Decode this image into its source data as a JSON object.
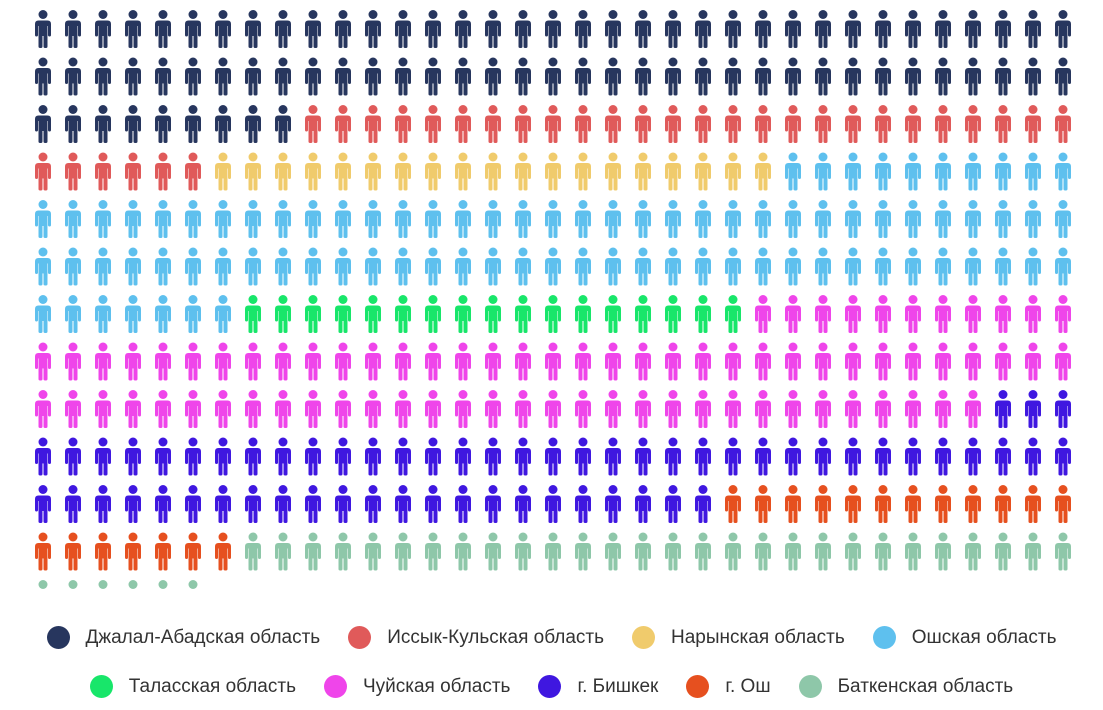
{
  "chart_data": {
    "type": "pictogram",
    "units_per_row": 35,
    "series": [
      {
        "name": "Джалал-Абадская область",
        "count": 79,
        "color": "#27365e"
      },
      {
        "name": "Иссык-Кульская область",
        "count": 32,
        "color": "#e05a5a"
      },
      {
        "name": "Нарынская область",
        "count": 19,
        "color": "#f0cb6c"
      },
      {
        "name": "Ошская область",
        "count": 87,
        "color": "#5ec0ee"
      },
      {
        "name": "Таласская область",
        "count": 17,
        "color": "#18e66a"
      },
      {
        "name": "Чуйская область",
        "count": 78,
        "color": "#ef45ea"
      },
      {
        "name": "г. Бишкек",
        "count": 61,
        "color": "#3f17e0"
      },
      {
        "name": "г. Ош",
        "count": 19,
        "color": "#e6501f"
      },
      {
        "name": "Баткенская область",
        "count": 34,
        "color": "#8ec7a9"
      }
    ],
    "legend_position": "bottom",
    "legend_rows": [
      [
        0,
        1,
        2,
        3
      ],
      [
        4,
        5,
        6,
        7,
        8
      ]
    ]
  }
}
